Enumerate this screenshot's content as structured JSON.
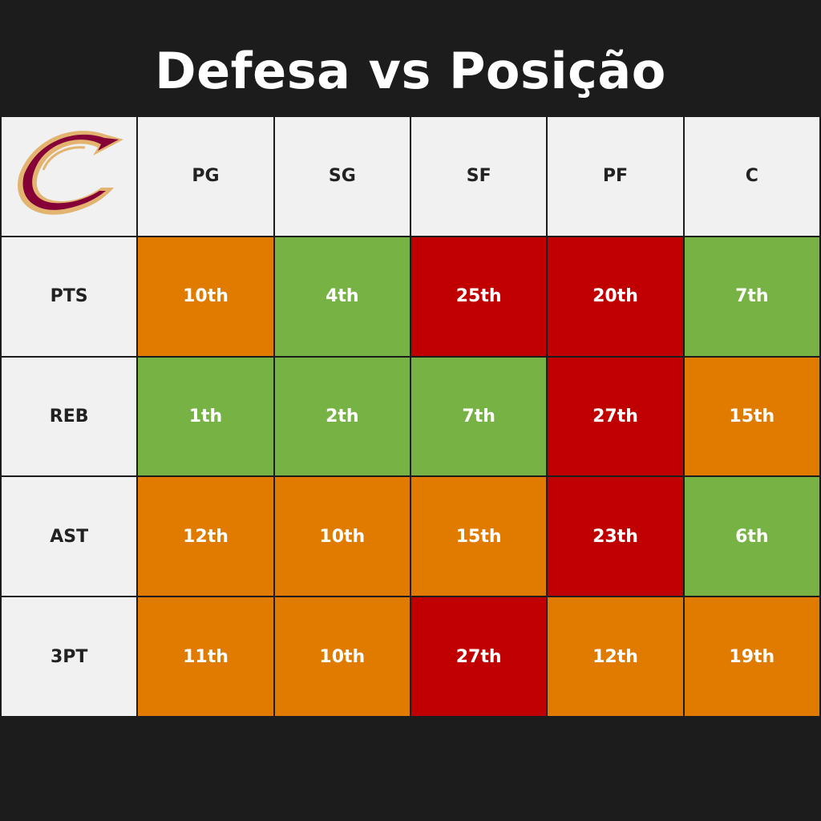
{
  "title": "Defesa vs Posição",
  "logo": {
    "icon": "cavaliers-c-logo",
    "colors": {
      "wine": "#860038",
      "gold": "#e2b46f"
    }
  },
  "columns": [
    "PG",
    "SG",
    "SF",
    "PF",
    "C"
  ],
  "legend_colors": {
    "good": "#77b244",
    "average": "#e07b00",
    "bad": "#c00000"
  },
  "rows": [
    {
      "label": "PTS",
      "cells": [
        {
          "value": "10th",
          "rating": "average"
        },
        {
          "value": "4th",
          "rating": "good"
        },
        {
          "value": "25th",
          "rating": "bad"
        },
        {
          "value": "20th",
          "rating": "bad"
        },
        {
          "value": "7th",
          "rating": "good"
        }
      ]
    },
    {
      "label": "REB",
      "cells": [
        {
          "value": "1th",
          "rating": "good"
        },
        {
          "value": "2th",
          "rating": "good"
        },
        {
          "value": "7th",
          "rating": "good"
        },
        {
          "value": "27th",
          "rating": "bad"
        },
        {
          "value": "15th",
          "rating": "average"
        }
      ]
    },
    {
      "label": "AST",
      "cells": [
        {
          "value": "12th",
          "rating": "average"
        },
        {
          "value": "10th",
          "rating": "average"
        },
        {
          "value": "15th",
          "rating": "average"
        },
        {
          "value": "23th",
          "rating": "bad"
        },
        {
          "value": "6th",
          "rating": "good"
        }
      ]
    },
    {
      "label": "3PT",
      "cells": [
        {
          "value": "11th",
          "rating": "average"
        },
        {
          "value": "10th",
          "rating": "average"
        },
        {
          "value": "27th",
          "rating": "bad"
        },
        {
          "value": "12th",
          "rating": "average"
        },
        {
          "value": "19th",
          "rating": "average"
        }
      ]
    }
  ]
}
